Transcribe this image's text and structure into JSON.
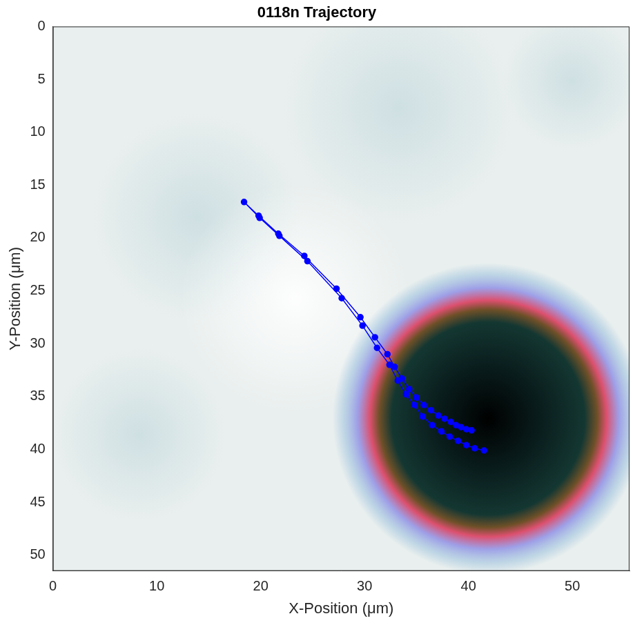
{
  "chart_data": {
    "type": "scatter",
    "title": "0118n Trajectory",
    "x_label": "X-Position (μm)",
    "y_label": "Y-Position (μm)",
    "x": [
      41.5,
      40.6,
      39.8,
      39.0,
      38.2,
      37.4,
      36.5,
      35.6,
      34.8,
      34.0,
      33.2,
      32.4,
      31.2,
      29.8,
      27.8,
      24.5,
      21.8,
      19.9,
      18.4,
      19.8,
      21.7,
      24.2,
      27.3,
      29.6,
      31.0,
      32.2,
      32.9,
      33.6,
      34.3,
      35.0,
      35.7,
      36.4,
      37.1,
      37.7,
      38.3,
      38.8,
      39.3,
      39.8,
      40.3
    ],
    "values": [
      40.1,
      39.9,
      39.6,
      39.2,
      38.8,
      38.3,
      37.7,
      36.9,
      35.8,
      34.8,
      33.5,
      32.0,
      30.4,
      28.3,
      25.7,
      22.2,
      19.8,
      18.1,
      16.6,
      17.9,
      19.6,
      21.7,
      24.8,
      27.5,
      29.4,
      31.0,
      32.2,
      33.3,
      34.3,
      35.1,
      35.8,
      36.3,
      36.8,
      37.1,
      37.4,
      37.7,
      37.9,
      38.1,
      38.2
    ],
    "color": "#0000ff",
    "marker": "circle",
    "line_style": "solid",
    "xlim": [
      0,
      55.5
    ],
    "ylim": [
      0,
      51.5
    ],
    "xticks": [
      0,
      10,
      20,
      30,
      40,
      50
    ],
    "yticks": [
      0,
      5,
      10,
      15,
      20,
      25,
      30,
      35,
      40,
      45,
      50
    ],
    "reversed_y": true,
    "grid": false
  }
}
